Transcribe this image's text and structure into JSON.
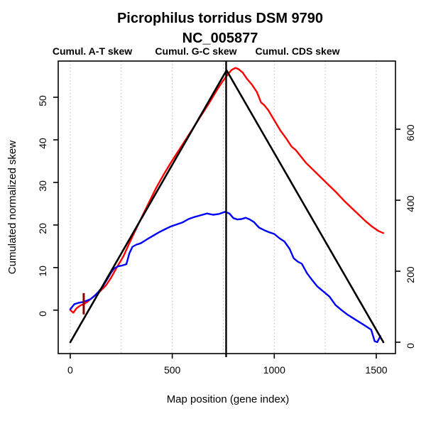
{
  "title": "Picrophilus torridus DSM 9790",
  "subtitle": "NC_005877",
  "legend": [
    {
      "label": "Cumul. A-T skew",
      "color": "#ff0000"
    },
    {
      "label": "Cumul. G-C skew",
      "color": "#0000ff"
    },
    {
      "label": "Cumul. CDS skew",
      "color": "#000000"
    }
  ],
  "axes": {
    "left": {
      "label": "Cumulated normalized skew",
      "ticks": [
        0,
        10,
        20,
        30,
        40,
        50
      ]
    },
    "right": {
      "ticks": [
        0,
        200,
        400,
        600
      ]
    },
    "bottom": {
      "label": "Map position (gene index)",
      "ticks": [
        0,
        500,
        1000,
        1500
      ]
    }
  },
  "chart_data": {
    "type": "line",
    "title": "Picrophilus torridus DSM 9790",
    "subtitle": "NC_005877",
    "xlabel": "Map position (gene index)",
    "ylabel_left": "Cumulated normalized skew",
    "xlim": [
      -59,
      1594
    ],
    "ylim_left": [
      -10.2,
      58.5
    ],
    "ylim_right": [
      -32,
      792
    ],
    "grid": "vertical-dotted",
    "gridlines_x": [
      0,
      250,
      500,
      750,
      1000,
      1250,
      1500
    ],
    "gridline_color": "#c6c6c6",
    "series": [
      {
        "name": "Cumul. A-T skew",
        "color": "#ff0000",
        "axis": "left",
        "width": 2.4,
        "x": [
          0,
          15,
          30,
          50,
          65,
          80,
          100,
          125,
          150,
          175,
          200,
          230,
          260,
          290,
          320,
          350,
          385,
          420,
          455,
          490,
          525,
          560,
          600,
          640,
          680,
          715,
          745,
          770,
          790,
          810,
          825,
          845,
          865,
          890,
          915,
          935,
          950,
          970,
          1000,
          1030,
          1060,
          1085,
          1105,
          1125,
          1155,
          1185,
          1215,
          1245,
          1275,
          1305,
          1340,
          1375,
          1410,
          1445,
          1480,
          1510,
          1535
        ],
        "y": [
          0,
          -0.6,
          0.4,
          1.1,
          1.4,
          1.8,
          2.6,
          3.6,
          4.6,
          5.8,
          7.6,
          10.2,
          12.6,
          15.8,
          18.8,
          21.8,
          25.2,
          28.6,
          31.6,
          34.4,
          37.0,
          39.6,
          42.6,
          45.6,
          48.6,
          51.4,
          53.6,
          55.2,
          56.4,
          56.9,
          56.6,
          55.8,
          54.4,
          53.0,
          51.2,
          48.8,
          48.2,
          47.0,
          44.6,
          42.2,
          40.2,
          38.4,
          37.6,
          36.4,
          34.6,
          33.2,
          31.8,
          30.4,
          29.0,
          27.6,
          25.8,
          24.2,
          22.6,
          21.0,
          19.6,
          18.6,
          18.1
        ]
      },
      {
        "name": "Cumul. G-C skew",
        "color": "#0000ff",
        "axis": "left",
        "width": 2.4,
        "x": [
          0,
          20,
          40,
          60,
          80,
          100,
          120,
          140,
          160,
          180,
          200,
          215,
          235,
          255,
          275,
          290,
          305,
          325,
          345,
          365,
          385,
          410,
          435,
          460,
          490,
          520,
          550,
          580,
          610,
          640,
          670,
          700,
          730,
          760,
          780,
          800,
          820,
          840,
          860,
          880,
          900,
          925,
          950,
          975,
          1000,
          1025,
          1050,
          1075,
          1095,
          1115,
          1135,
          1160,
          1185,
          1210,
          1240,
          1270,
          1300,
          1330,
          1360,
          1390,
          1420,
          1450,
          1475,
          1492,
          1505,
          1520
        ],
        "y": [
          0.2,
          1.4,
          1.7,
          1.9,
          2.2,
          2.6,
          3.4,
          4.4,
          5.6,
          7.2,
          8.8,
          9.8,
          10.3,
          10.5,
          10.8,
          13.4,
          14.9,
          15.4,
          15.7,
          16.3,
          16.9,
          17.6,
          18.3,
          18.9,
          19.6,
          20.1,
          20.6,
          21.4,
          21.9,
          22.3,
          22.7,
          22.4,
          22.6,
          23.1,
          22.7,
          21.6,
          21.3,
          21.4,
          21.7,
          21.3,
          20.7,
          19.4,
          18.8,
          18.3,
          17.9,
          16.9,
          16.1,
          14.4,
          12.2,
          11.4,
          10.9,
          8.7,
          7.1,
          5.6,
          4.4,
          3.2,
          1.2,
          0.0,
          -1.1,
          -2.0,
          -2.9,
          -3.8,
          -4.6,
          -7.3,
          -7.5,
          -6.1
        ]
      },
      {
        "name": "Cumul. CDS skew",
        "color": "#000000",
        "axis": "right",
        "width": 2.6,
        "x": [
          0,
          766,
          1535
        ],
        "y": [
          0,
          766,
          0
        ]
      }
    ],
    "annotations": {
      "vline": {
        "x": 764,
        "color": "#000000"
      },
      "origin_marker": {
        "x": 66,
        "y_from": -1.0,
        "y_to": 4.0,
        "axis": "left",
        "color": "#8b0000"
      }
    }
  }
}
